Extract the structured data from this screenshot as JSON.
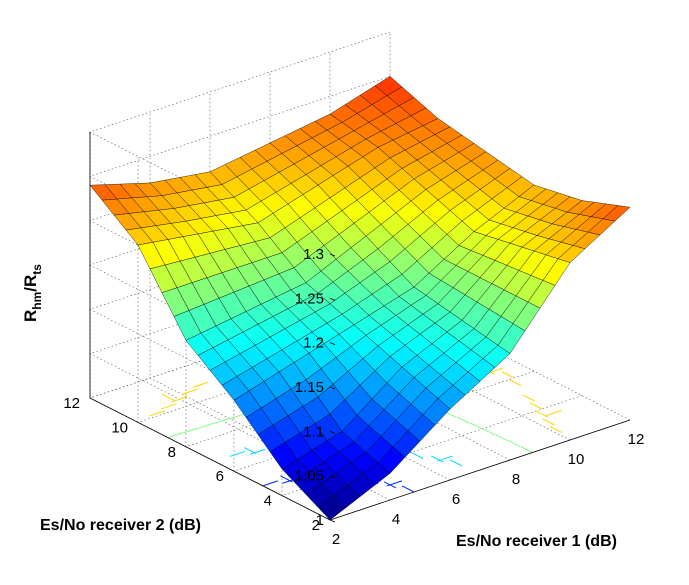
{
  "chart_data": {
    "type": "surface3d",
    "title": "",
    "xlabel": "Es/No receiver 1 (dB)",
    "ylabel": "Es/No receiver 2 (dB)",
    "zlabel": {
      "main_1": "R",
      "sub_1": "hm",
      "sep": "/",
      "main_2": "R",
      "sub_2": "ts"
    },
    "x_ticks": [
      "2",
      "4",
      "6",
      "8",
      "10",
      "12"
    ],
    "y_ticks": [
      "2",
      "4",
      "6",
      "8",
      "10",
      "12"
    ],
    "z_ticks": [
      "1",
      "1.05",
      "1.1",
      "1.15",
      "1.2",
      "1.25",
      "1.3"
    ],
    "xlim": [
      2,
      12
    ],
    "ylim": [
      2,
      12
    ],
    "zlim": [
      1,
      1.3
    ],
    "colormap": "jet",
    "contour_projection": true,
    "grid": true,
    "x": [
      2,
      4,
      6,
      8,
      10,
      12
    ],
    "y": [
      2,
      4,
      6,
      8,
      10,
      12
    ],
    "z": [
      [
        1.0,
        1.03,
        1.08,
        1.12,
        1.2,
        1.24
      ],
      [
        1.03,
        1.05,
        1.1,
        1.13,
        1.19,
        1.22
      ],
      [
        1.08,
        1.1,
        1.12,
        1.14,
        1.18,
        1.21
      ],
      [
        1.12,
        1.13,
        1.14,
        1.17,
        1.2,
        1.22
      ],
      [
        1.2,
        1.19,
        1.18,
        1.2,
        1.22,
        1.23
      ],
      [
        1.24,
        1.22,
        1.21,
        1.22,
        1.23,
        1.25
      ]
    ]
  }
}
